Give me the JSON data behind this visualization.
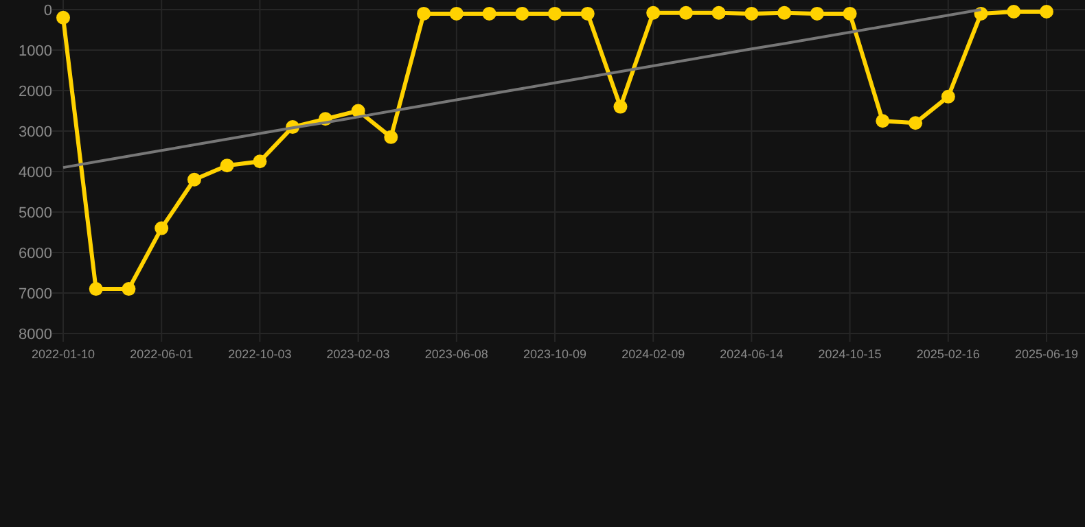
{
  "chart_data": {
    "type": "line",
    "categories": [
      "2022-01-10",
      null,
      null,
      "2022-06-01",
      null,
      null,
      "2022-10-03",
      null,
      null,
      "2023-02-03",
      null,
      null,
      "2023-06-08",
      null,
      null,
      "2023-10-09",
      null,
      null,
      "2024-02-09",
      null,
      null,
      "2024-06-14",
      null,
      null,
      "2024-10-15",
      null,
      null,
      "2025-02-16",
      null,
      null,
      "2025-06-19"
    ],
    "series": [
      {
        "color": "#ffd200",
        "marker": "circle",
        "values": [
          200,
          6900,
          6900,
          5400,
          4200,
          3850,
          3750,
          2900,
          2700,
          2500,
          3150,
          100,
          100,
          100,
          100,
          100,
          100,
          2400,
          80,
          80,
          80,
          100,
          80,
          100,
          100,
          2750,
          2800,
          2150,
          100,
          50,
          50
        ]
      },
      {
        "color": "#777777",
        "marker": "none",
        "values": [
          3900,
          3760,
          3620,
          3480,
          3340,
          3200,
          3060,
          2920,
          2790,
          2650,
          2510,
          2370,
          2230,
          2090,
          1950,
          1810,
          1670,
          1530,
          1390,
          1250,
          1110,
          970,
          840,
          700,
          560,
          420,
          280,
          140,
          0,
          null,
          null
        ]
      }
    ],
    "ylim": [
      8000,
      0
    ],
    "yticks": [
      0,
      1000,
      2000,
      3000,
      4000,
      5000,
      6000,
      7000,
      8000
    ],
    "grid": true
  }
}
